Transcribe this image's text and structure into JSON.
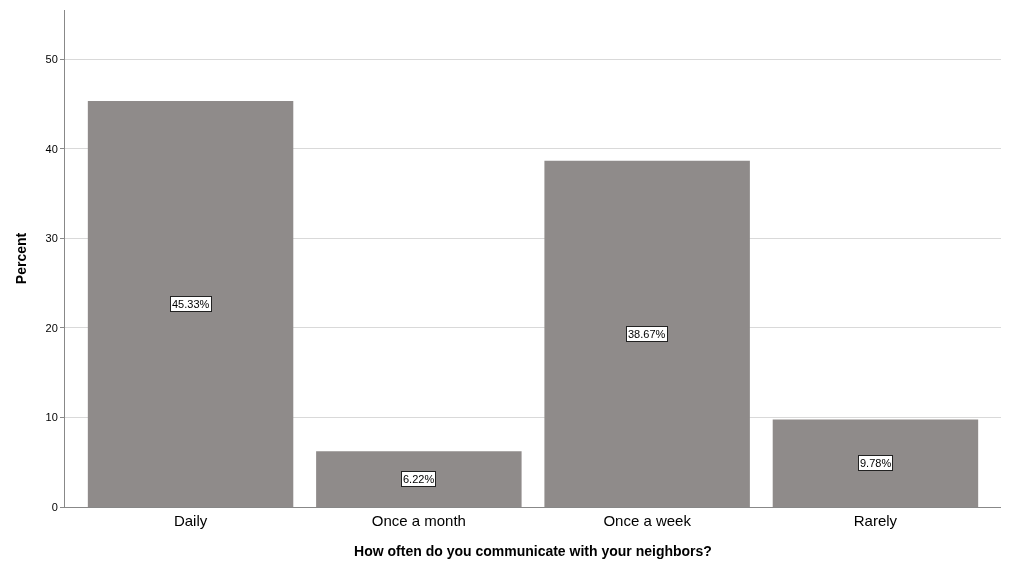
{
  "chart_data": {
    "type": "bar",
    "xlabel": "How often do you communicate with your neighbors?",
    "ylabel": "Percent",
    "categories": [
      "Daily",
      "Once a month",
      "Once a week",
      "Rarely"
    ],
    "values": [
      45.33,
      6.22,
      38.67,
      9.78
    ],
    "value_labels": [
      "45.33%",
      "6.22%",
      "38.67%",
      "9.78%"
    ],
    "color": "#8f8b8a",
    "ylim": [
      0,
      55.5
    ],
    "yticks": [
      0,
      10,
      20,
      30,
      40,
      50
    ],
    "grid": "y",
    "legend": false
  }
}
